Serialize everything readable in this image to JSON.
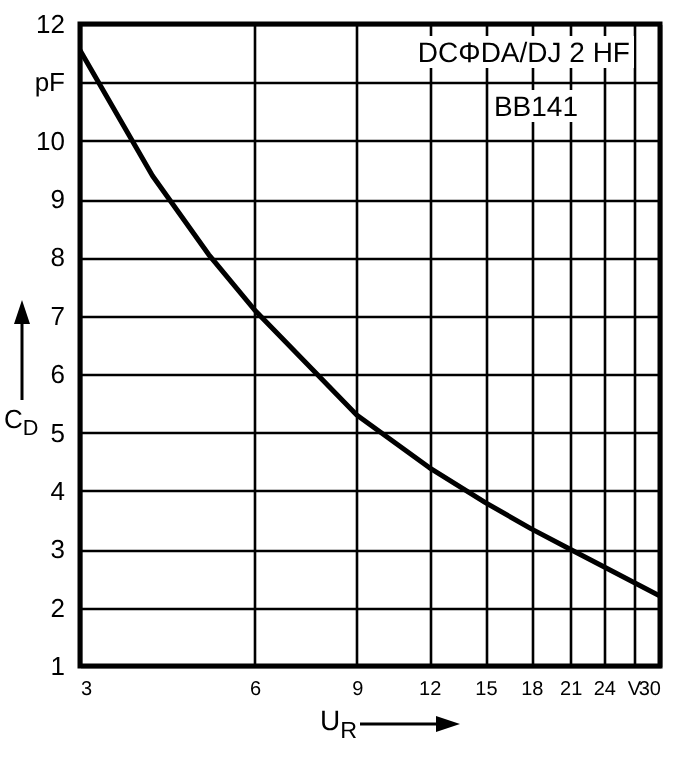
{
  "chart_data": {
    "type": "line",
    "xlabel": "U$_{R}$",
    "ylabel": "C$_{D}$",
    "annotations": [
      "DCΦDA/DJ 2 HF",
      "BB141"
    ],
    "x": [
      3,
      4,
      5,
      6,
      9,
      12,
      15,
      18,
      21,
      24,
      30
    ],
    "series": [
      {
        "color": "#000000",
        "values": [
          11.55,
          9.4,
          8.05,
          7.1,
          5.3,
          4.4,
          3.8,
          3.35,
          3.0,
          2.7,
          2.2
        ]
      }
    ],
    "log": "x",
    "grid": true,
    "xlim": [
      3,
      30
    ],
    "xticks": [
      3,
      6,
      9,
      12,
      15,
      18,
      21,
      24,
      {
        "value": 27,
        "label": "V"
      },
      30
    ],
    "ylim": [
      1,
      12
    ],
    "yticks": [
      1,
      2,
      3,
      4,
      5,
      6,
      7,
      8,
      9,
      10,
      {
        "value": 11,
        "label": "pF"
      },
      12
    ]
  }
}
